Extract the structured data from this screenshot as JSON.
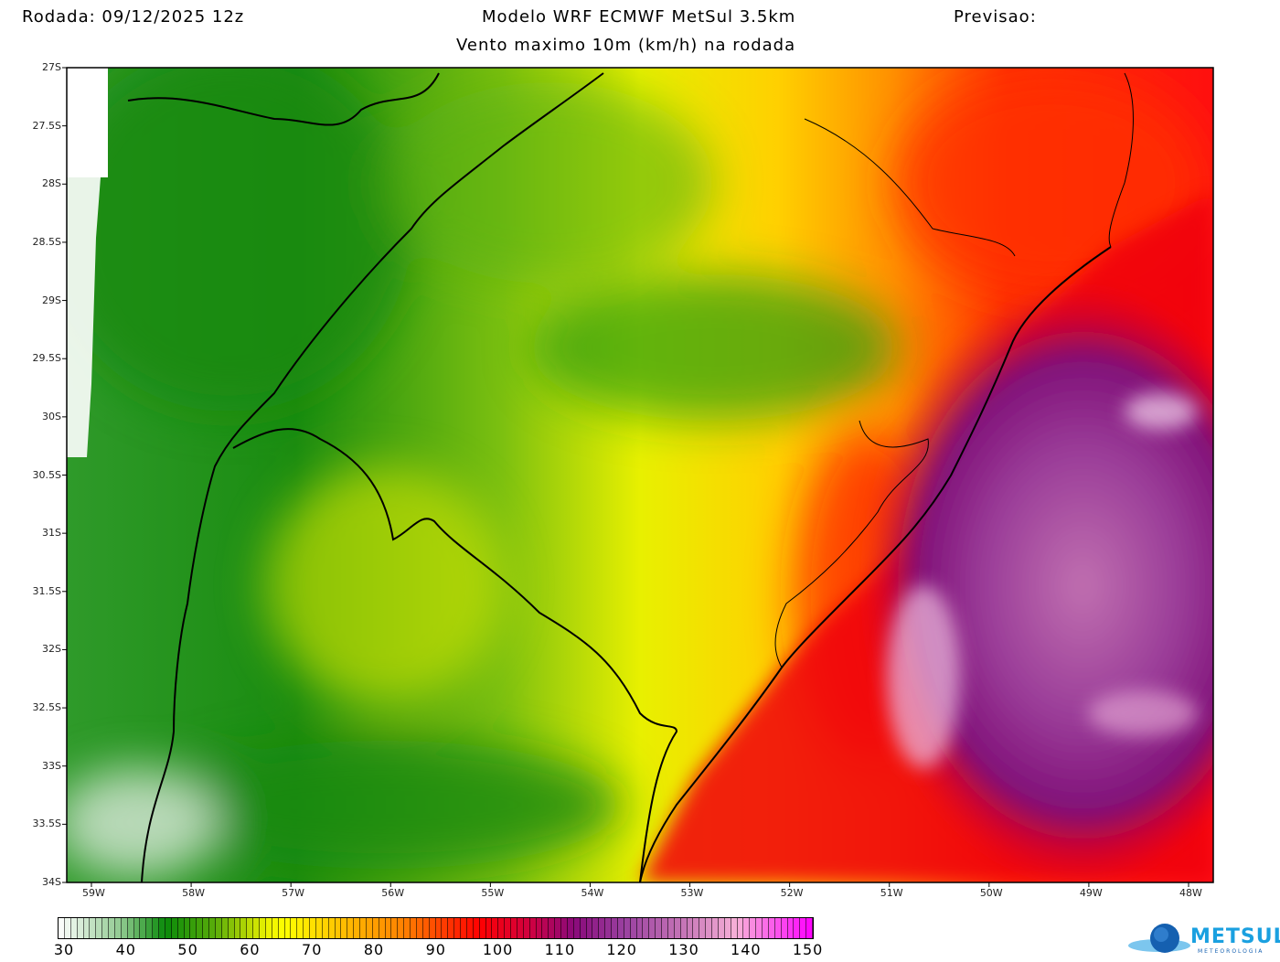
{
  "header": {
    "run": "Rodada: 09/12/2025 12z",
    "model": "Modelo WRF ECMWF MetSul 3.5km",
    "forecast": "Previsao:",
    "subtitle": "Vento maximo 10m (km/h) na rodada"
  },
  "map": {
    "lat_ticks": [
      "27S",
      "27.5S",
      "28S",
      "28.5S",
      "29S",
      "29.5S",
      "30S",
      "30.5S",
      "31S",
      "31.5S",
      "32S",
      "32.5S",
      "33S",
      "33.5S",
      "34S"
    ],
    "lon_ticks": [
      "59W",
      "58W",
      "57W",
      "56W",
      "55W",
      "54W",
      "53W",
      "52W",
      "51W",
      "50W",
      "49W",
      "48W"
    ],
    "field": "max 10m wind speed"
  },
  "colorbar": {
    "labels": [
      "30",
      "40",
      "50",
      "60",
      "70",
      "80",
      "90",
      "100",
      "110",
      "120",
      "130",
      "140",
      "150"
    ],
    "stops": [
      [
        "30",
        "#ffffff"
      ],
      [
        "40",
        "#8fc98f"
      ],
      [
        "47",
        "#0a8a0a"
      ],
      [
        "55",
        "#5aad0a"
      ],
      [
        "63",
        "#e8f000"
      ],
      [
        "66",
        "#ffff00"
      ],
      [
        "75",
        "#ffc000"
      ],
      [
        "85",
        "#ff8000"
      ],
      [
        "97",
        "#ff0000"
      ],
      [
        "105",
        "#d00040"
      ],
      [
        "112",
        "#8a0a7a"
      ],
      [
        "120",
        "#9a40a0"
      ],
      [
        "130",
        "#c878b8"
      ],
      [
        "138",
        "#f8b0d8"
      ],
      [
        "150",
        "#ff00ff"
      ]
    ]
  },
  "logo": {
    "name": "METSUL",
    "tagline": "METEOROLOGIA"
  }
}
